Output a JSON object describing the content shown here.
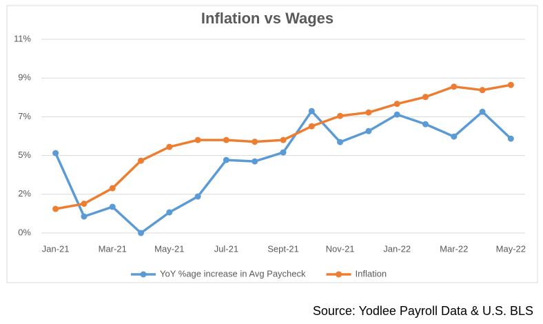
{
  "chart_data": {
    "type": "line",
    "title": "Inflation vs Wages",
    "categories": [
      "Jan-21",
      null,
      "Mar-21",
      null,
      "May-21",
      null,
      "Jul-21",
      null,
      "Sept-21",
      null,
      "Nov-21",
      null,
      "Jan-22",
      null,
      "Mar-22",
      null,
      "May-22"
    ],
    "series": [
      {
        "name": "YoY %age increase in Avg Paycheck",
        "color": "#5b9bd5",
        "values": [
          4.64,
          0.96,
          1.52,
          0,
          1.2,
          2.12,
          4.24,
          4.16,
          4.68,
          7.08,
          5.28,
          5.92,
          6.88,
          6.32,
          5.6,
          7.04,
          5.48
        ]
      },
      {
        "name": "Inflation",
        "color": "#ed7d31",
        "values": [
          1.4,
          1.7,
          2.6,
          4.2,
          5.0,
          5.4,
          5.4,
          5.3,
          5.4,
          6.2,
          6.8,
          7.0,
          7.5,
          7.9,
          8.5,
          8.3,
          8.6
        ]
      }
    ],
    "ylim": [
      0,
      11.25
    ],
    "yticks": [
      {
        "value": 0,
        "label": "0%"
      },
      {
        "value": 2.25,
        "label": "2%"
      },
      {
        "value": 4.5,
        "label": "5%"
      },
      {
        "value": 6.75,
        "label": "7%"
      },
      {
        "value": 9,
        "label": "9%"
      },
      {
        "value": 11.25,
        "label": "11%"
      }
    ],
    "grid": true,
    "legend": "bottom",
    "source": "Source: Yodlee Payroll Data & U.S. BLS"
  }
}
